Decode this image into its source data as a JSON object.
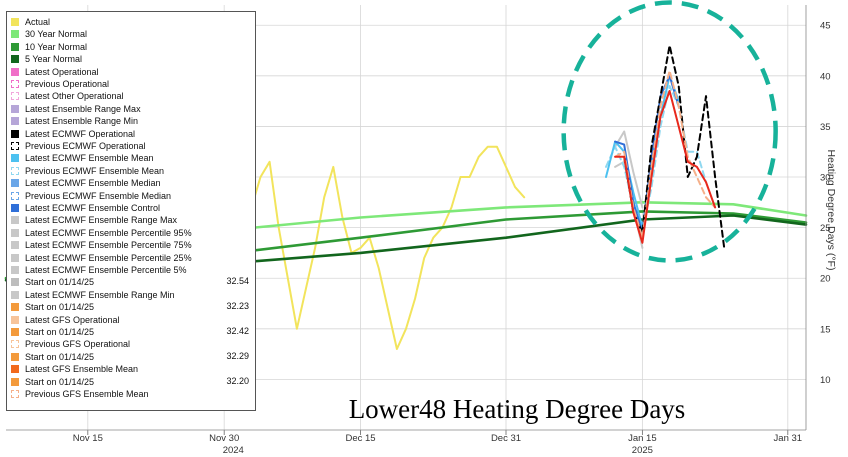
{
  "chart_data": {
    "type": "line",
    "title": "Lower48 Heating Degree Days",
    "ylabel": "Heating Degree Days (°F)",
    "ylim": [
      5,
      47
    ],
    "y_ticks": [
      10,
      15,
      20,
      25,
      30,
      35,
      40,
      45
    ],
    "x_range": [
      "2024-11-06",
      "2025-02-02"
    ],
    "x_ticks": [
      {
        "date": "2024-11-15",
        "label": "Nov 15"
      },
      {
        "date": "2024-11-30",
        "label": "Nov 30"
      },
      {
        "date": "2024-12-15",
        "label": "Dec 15"
      },
      {
        "date": "2024-12-31",
        "label": "Dec 31"
      },
      {
        "date": "2025-01-15",
        "label": "Jan 15"
      },
      {
        "date": "2025-01-31",
        "label": "Jan 31"
      }
    ],
    "year_labels": [
      {
        "date": "2024-12-01",
        "label": "2024"
      },
      {
        "date": "2025-01-15",
        "label": "2025"
      }
    ],
    "grid": true,
    "legend_position": "left",
    "series": [
      {
        "name": "Actual",
        "color": "#f2e45c",
        "dash": false,
        "points": [
          [
            "2024-11-26",
            25
          ],
          [
            "2024-11-27",
            22
          ],
          [
            "2024-11-28",
            18
          ],
          [
            "2024-11-29",
            16
          ],
          [
            "2024-11-30",
            18.5
          ],
          [
            "2024-12-01",
            20
          ],
          [
            "2024-12-02",
            22
          ],
          [
            "2024-12-03",
            27
          ],
          [
            "2024-12-04",
            30
          ],
          [
            "2024-12-05",
            31.5
          ],
          [
            "2024-12-06",
            25
          ],
          [
            "2024-12-07",
            20
          ],
          [
            "2024-12-08",
            15
          ],
          [
            "2024-12-09",
            19
          ],
          [
            "2024-12-10",
            23
          ],
          [
            "2024-12-11",
            28
          ],
          [
            "2024-12-12",
            31
          ],
          [
            "2024-12-13",
            26
          ],
          [
            "2024-12-14",
            22.5
          ],
          [
            "2024-12-15",
            23
          ],
          [
            "2024-12-16",
            24
          ],
          [
            "2024-12-17",
            21
          ],
          [
            "2024-12-18",
            17
          ],
          [
            "2024-12-19",
            13
          ],
          [
            "2024-12-20",
            15
          ],
          [
            "2024-12-21",
            18
          ],
          [
            "2024-12-22",
            22
          ],
          [
            "2024-12-23",
            24
          ],
          [
            "2024-12-24",
            25
          ],
          [
            "2024-12-25",
            27
          ],
          [
            "2024-12-26",
            30
          ],
          [
            "2024-12-27",
            30
          ],
          [
            "2024-12-28",
            32
          ],
          [
            "2024-12-29",
            33
          ],
          [
            "2024-12-30",
            33
          ],
          [
            "2024-12-31",
            31
          ],
          [
            "2025-01-01",
            29
          ],
          [
            "2025-01-02",
            28
          ]
        ]
      },
      {
        "name": "30 Year Normal",
        "color": "#7ee879",
        "dash": false,
        "points": [
          [
            "2024-11-06",
            20
          ],
          [
            "2024-11-20",
            23
          ],
          [
            "2024-12-01",
            24.8
          ],
          [
            "2024-12-15",
            26
          ],
          [
            "2024-12-31",
            27
          ],
          [
            "2025-01-15",
            27.5
          ],
          [
            "2025-01-25",
            27.3
          ],
          [
            "2025-02-02",
            26.2
          ]
        ]
      },
      {
        "name": "10 Year Normal",
        "color": "#2e9a35",
        "dash": false,
        "points": [
          [
            "2024-11-06",
            20
          ],
          [
            "2024-11-20",
            21.5
          ],
          [
            "2024-12-01",
            22.5
          ],
          [
            "2024-12-15",
            24
          ],
          [
            "2024-12-31",
            25.8
          ],
          [
            "2025-01-15",
            26.6
          ],
          [
            "2025-01-25",
            26.4
          ],
          [
            "2025-02-02",
            25.5
          ]
        ]
      },
      {
        "name": "5 Year Normal",
        "color": "#12661d",
        "dash": false,
        "points": [
          [
            "2024-11-06",
            19.8
          ],
          [
            "2024-11-20",
            21
          ],
          [
            "2024-12-01",
            21.5
          ],
          [
            "2024-12-15",
            22.5
          ],
          [
            "2024-12-31",
            24
          ],
          [
            "2025-01-15",
            25.8
          ],
          [
            "2025-01-25",
            26.2
          ],
          [
            "2025-02-02",
            25.3
          ]
        ]
      },
      {
        "name": "Latest ECMWF Ensemble Range Max",
        "color": "#c8c8c8",
        "dash": false,
        "points": [
          [
            "2025-01-12",
            33
          ],
          [
            "2025-01-13",
            34.5
          ],
          [
            "2025-01-14",
            30.5
          ],
          [
            "2025-01-15",
            27
          ]
        ]
      },
      {
        "name": "Latest ECMWF Ensemble Range Min",
        "color": "#c8c8c8",
        "dash": false,
        "points": [
          [
            "2025-01-12",
            31
          ],
          [
            "2025-01-13",
            31.5
          ],
          [
            "2025-01-14",
            27
          ],
          [
            "2025-01-15",
            23
          ]
        ]
      },
      {
        "name": "Previous ECMWF Ensemble Mean",
        "color": "#8fd8f0",
        "dash": true,
        "points": [
          [
            "2025-01-11",
            31
          ],
          [
            "2025-01-12",
            33
          ],
          [
            "2025-01-13",
            31
          ],
          [
            "2025-01-14",
            27
          ],
          [
            "2025-01-15",
            24.5
          ],
          [
            "2025-01-16",
            29
          ],
          [
            "2025-01-17",
            35
          ],
          [
            "2025-01-18",
            39
          ],
          [
            "2025-01-19",
            37
          ],
          [
            "2025-01-20",
            32.5
          ],
          [
            "2025-01-21",
            32.5
          ],
          [
            "2025-01-22",
            29.5
          ]
        ]
      },
      {
        "name": "Latest ECMWF Ensemble Mean",
        "color": "#4cc1f0",
        "dash": false,
        "points": [
          [
            "2025-01-11",
            30
          ],
          [
            "2025-01-12",
            33.5
          ],
          [
            "2025-01-13",
            32.5
          ],
          [
            "2025-01-14",
            28.5
          ],
          [
            "2025-01-15",
            25
          ],
          [
            "2025-01-16",
            31
          ],
          [
            "2025-01-17",
            36
          ],
          [
            "2025-01-18",
            40
          ],
          [
            "2025-01-19",
            37.5
          ]
        ]
      },
      {
        "name": "Latest ECMWF Ensemble Control",
        "color": "#2f6fd8",
        "dash": false,
        "points": [
          [
            "2025-01-12",
            33.5
          ],
          [
            "2025-01-13",
            33.2
          ],
          [
            "2025-01-14",
            27.5
          ],
          [
            "2025-01-15",
            24.5
          ],
          [
            "2025-01-16",
            32
          ],
          [
            "2025-01-17",
            38
          ],
          [
            "2025-01-18",
            40
          ],
          [
            "2025-01-19",
            37
          ]
        ]
      },
      {
        "name": "Previous ECMWF Operational",
        "color": "#000000",
        "dash": true,
        "points": [
          [
            "2025-01-13",
            32
          ],
          [
            "2025-01-14",
            26.5
          ],
          [
            "2025-01-15",
            24.5
          ],
          [
            "2025-01-16",
            33
          ],
          [
            "2025-01-17",
            38
          ],
          [
            "2025-01-18",
            43
          ],
          [
            "2025-01-19",
            39
          ],
          [
            "2025-01-20",
            30
          ],
          [
            "2025-01-21",
            32
          ],
          [
            "2025-01-22",
            38
          ],
          [
            "2025-01-23",
            30
          ],
          [
            "2025-01-24",
            23
          ]
        ]
      },
      {
        "name": "Previous GFS Ensemble Mean",
        "color": "#f5b08a",
        "dash": true,
        "points": [
          [
            "2025-01-12",
            32
          ],
          [
            "2025-01-13",
            32.5
          ],
          [
            "2025-01-14",
            27
          ],
          [
            "2025-01-15",
            24
          ],
          [
            "2025-01-16",
            31
          ],
          [
            "2025-01-17",
            37
          ],
          [
            "2025-01-18",
            40.5
          ],
          [
            "2025-01-19",
            37
          ],
          [
            "2025-01-20",
            32
          ],
          [
            "2025-01-21",
            30
          ],
          [
            "2025-01-22",
            28
          ],
          [
            "2025-01-23",
            27
          ]
        ]
      },
      {
        "name": "Latest GFS Ensemble Mean",
        "color": "#e8281c",
        "dash": false,
        "points": [
          [
            "2025-01-12",
            32
          ],
          [
            "2025-01-13",
            32
          ],
          [
            "2025-01-14",
            26.5
          ],
          [
            "2025-01-15",
            23.5
          ],
          [
            "2025-01-16",
            30
          ],
          [
            "2025-01-17",
            36
          ],
          [
            "2025-01-18",
            38.5
          ],
          [
            "2025-01-19",
            35
          ],
          [
            "2025-01-20",
            31.5
          ],
          [
            "2025-01-21",
            31
          ],
          [
            "2025-01-22",
            29.5
          ],
          [
            "2025-01-23",
            27
          ]
        ]
      }
    ],
    "annotations": [
      {
        "type": "dashed-circle",
        "color": "#17b29a",
        "center": [
          "2025-01-18",
          34.5
        ]
      }
    ]
  },
  "legend": {
    "entries": [
      {
        "label": "Actual",
        "color": "#f2e45c",
        "style": "fill",
        "value": ""
      },
      {
        "label": "30 Year Normal",
        "color": "#7ee879",
        "style": "fill",
        "value": ""
      },
      {
        "label": "10 Year Normal",
        "color": "#2e9a35",
        "style": "fill",
        "value": ""
      },
      {
        "label": "5 Year Normal",
        "color": "#12661d",
        "style": "fill",
        "value": ""
      },
      {
        "label": "Latest Operational",
        "color": "#f06fc8",
        "style": "fill",
        "value": ""
      },
      {
        "label": "Previous Operational",
        "color": "#f06fc8",
        "style": "dash",
        "value": ""
      },
      {
        "label": "Latest Other Operational",
        "color": "#f2a6dc",
        "style": "dash",
        "value": ""
      },
      {
        "label": "Latest Ensemble Range Max",
        "color": "#b6a6d8",
        "style": "fill",
        "value": ""
      },
      {
        "label": "Latest Ensemble Range Min",
        "color": "#b6a6d8",
        "style": "fill",
        "value": ""
      },
      {
        "label": "Latest ECMWF Operational",
        "color": "#000000",
        "style": "fill",
        "value": ""
      },
      {
        "label": "Previous ECMWF Operational",
        "color": "#000000",
        "style": "dash",
        "value": ""
      },
      {
        "label": "Latest ECMWF Ensemble Mean",
        "color": "#4cc1f0",
        "style": "fill",
        "value": ""
      },
      {
        "label": "Previous ECMWF Ensemble Mean",
        "color": "#8fd8f0",
        "style": "dash",
        "value": ""
      },
      {
        "label": "Latest ECMWF Ensemble Median",
        "color": "#6aa6e8",
        "style": "fill",
        "value": ""
      },
      {
        "label": "Previous ECMWF Ensemble Median",
        "color": "#6aa6e8",
        "style": "dash",
        "value": ""
      },
      {
        "label": "Latest ECMWF Ensemble Control",
        "color": "#2f6fd8",
        "style": "fill",
        "value": ""
      },
      {
        "label": "Latest ECMWF Ensemble Range Max",
        "color": "#c8c8c8",
        "style": "fill",
        "value": ""
      },
      {
        "label": "Latest ECMWF Ensemble Percentile 95%",
        "color": "#c8c8c8",
        "style": "fill",
        "value": ""
      },
      {
        "label": "Latest ECMWF Ensemble Percentile 75%",
        "color": "#c8c8c8",
        "style": "fill",
        "value": ""
      },
      {
        "label": "Latest ECMWF Ensemble Percentile 25%",
        "color": "#c8c8c8",
        "style": "fill",
        "value": ""
      },
      {
        "label": "Latest ECMWF Ensemble Percentile 5%",
        "color": "#c8c8c8",
        "style": "fill",
        "value": ""
      },
      {
        "label": "Start on 01/14/25",
        "color": "#bdbdbd",
        "style": "fill",
        "value": "32.54"
      },
      {
        "label": "Latest ECMWF Ensemble Range Min",
        "color": "#c8c8c8",
        "style": "fill",
        "value": ""
      },
      {
        "label": "Start on 01/14/25",
        "color": "#f39a3c",
        "style": "fill",
        "value": "32.23"
      },
      {
        "label": "Latest GFS Operational",
        "color": "#f7c49a",
        "style": "fill",
        "value": ""
      },
      {
        "label": "Start on 01/14/25",
        "color": "#f39a3c",
        "style": "fill",
        "value": "32.42"
      },
      {
        "label": "Previous GFS Operational",
        "color": "#f7c49a",
        "style": "dash",
        "value": ""
      },
      {
        "label": "Start on 01/14/25",
        "color": "#f39a3c",
        "style": "fill",
        "value": "32.29"
      },
      {
        "label": "Latest GFS Ensemble Mean",
        "color": "#f26a1c",
        "style": "fill",
        "value": ""
      },
      {
        "label": "Start on 01/14/25",
        "color": "#f39a3c",
        "style": "fill",
        "value": "32.20"
      },
      {
        "label": "Previous GFS Ensemble Mean",
        "color": "#f5b08a",
        "style": "dash",
        "value": ""
      }
    ]
  }
}
